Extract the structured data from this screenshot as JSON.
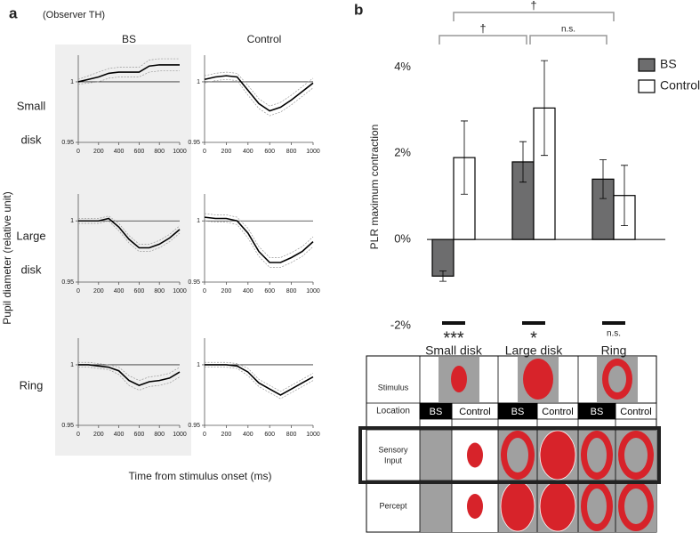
{
  "panel_a": {
    "label": "a",
    "observer": "(Observer TH)",
    "columns": [
      "BS",
      "Control"
    ],
    "rows": [
      [
        "Small",
        "disk"
      ],
      [
        "Large",
        "disk"
      ],
      [
        "Ring"
      ]
    ],
    "ylabel": "Pupil diameter (relative unit)",
    "xlabel": "Time from stimulus onset (ms)"
  },
  "panel_b": {
    "label": "b"
  },
  "chart_data": [
    {
      "type": "line",
      "x": [
        0,
        100,
        200,
        300,
        400,
        500,
        600,
        700,
        800,
        900,
        1000
      ],
      "xlim": [
        0,
        1000
      ],
      "xticks": [
        0,
        200,
        400,
        600,
        800,
        1000
      ],
      "ylim": [
        0.95,
        1.022
      ],
      "yticks": [
        0.95,
        1
      ],
      "reference_line": 1,
      "series": [
        {
          "color": "#000000",
          "values": [
            1.0,
            1.002,
            1.004,
            1.007,
            1.008,
            1.008,
            1.008,
            1.013,
            1.014,
            1.014,
            1.014
          ]
        },
        {
          "color": "#999999",
          "dash": true,
          "values": [
            1.002,
            1.005,
            1.008,
            1.011,
            1.012,
            1.012,
            1.012,
            1.018,
            1.019,
            1.019,
            1.019
          ]
        },
        {
          "color": "#999999",
          "dash": true,
          "values": [
            0.998,
            0.999,
            1.0,
            1.003,
            1.004,
            1.004,
            1.004,
            1.008,
            1.009,
            1.009,
            1.009
          ]
        }
      ]
    },
    {
      "type": "line",
      "x": [
        0,
        100,
        200,
        300,
        400,
        500,
        600,
        700,
        800,
        900,
        1000
      ],
      "xlim": [
        0,
        1000
      ],
      "xticks": [
        0,
        200,
        400,
        600,
        800,
        1000
      ],
      "ylim": [
        0.95,
        1.022
      ],
      "yticks": [
        0.95,
        1
      ],
      "reference_line": 1,
      "series": [
        {
          "color": "#000000",
          "values": [
            1.002,
            1.004,
            1.005,
            1.004,
            0.993,
            0.982,
            0.976,
            0.979,
            0.985,
            0.992,
            0.999
          ]
        },
        {
          "color": "#999999",
          "dash": true,
          "values": [
            1.005,
            1.007,
            1.008,
            1.007,
            0.997,
            0.986,
            0.98,
            0.983,
            0.989,
            0.996,
            1.003
          ]
        },
        {
          "color": "#999999",
          "dash": true,
          "values": [
            0.999,
            1.001,
            1.002,
            1.001,
            0.989,
            0.978,
            0.972,
            0.975,
            0.981,
            0.988,
            0.995
          ]
        }
      ]
    },
    {
      "type": "line",
      "x": [
        0,
        100,
        200,
        300,
        400,
        500,
        600,
        700,
        800,
        900,
        1000
      ],
      "xlim": [
        0,
        1000
      ],
      "xticks": [
        0,
        200,
        400,
        600,
        800,
        1000
      ],
      "ylim": [
        0.95,
        1.022
      ],
      "yticks": [
        0.95,
        1
      ],
      "reference_line": 1,
      "series": [
        {
          "color": "#000000",
          "values": [
            1.0,
            1.0,
            1.0,
            1.002,
            0.995,
            0.985,
            0.978,
            0.978,
            0.981,
            0.986,
            0.993
          ]
        },
        {
          "color": "#999999",
          "dash": true,
          "values": [
            1.002,
            1.002,
            1.002,
            1.004,
            0.998,
            0.988,
            0.981,
            0.981,
            0.984,
            0.989,
            0.996
          ]
        },
        {
          "color": "#999999",
          "dash": true,
          "values": [
            0.998,
            0.998,
            0.998,
            1.0,
            0.992,
            0.982,
            0.975,
            0.975,
            0.978,
            0.983,
            0.99
          ]
        }
      ]
    },
    {
      "type": "line",
      "x": [
        0,
        100,
        200,
        300,
        400,
        500,
        600,
        700,
        800,
        900,
        1000
      ],
      "xlim": [
        0,
        1000
      ],
      "xticks": [
        0,
        200,
        400,
        600,
        800,
        1000
      ],
      "ylim": [
        0.95,
        1.022
      ],
      "yticks": [
        0.95,
        1
      ],
      "reference_line": 1,
      "series": [
        {
          "color": "#000000",
          "values": [
            1.003,
            1.002,
            1.002,
            1.0,
            0.99,
            0.975,
            0.966,
            0.966,
            0.97,
            0.975,
            0.983
          ]
        },
        {
          "color": "#999999",
          "dash": true,
          "values": [
            1.006,
            1.005,
            1.005,
            1.003,
            0.994,
            0.979,
            0.97,
            0.97,
            0.974,
            0.979,
            0.987
          ]
        },
        {
          "color": "#999999",
          "dash": true,
          "values": [
            1.0,
            0.999,
            0.999,
            0.997,
            0.986,
            0.971,
            0.962,
            0.962,
            0.966,
            0.971,
            0.979
          ]
        }
      ]
    },
    {
      "type": "line",
      "x": [
        0,
        100,
        200,
        300,
        400,
        500,
        600,
        700,
        800,
        900,
        1000
      ],
      "xlim": [
        0,
        1000
      ],
      "xticks": [
        0,
        200,
        400,
        600,
        800,
        1000
      ],
      "ylim": [
        0.95,
        1.022
      ],
      "yticks": [
        0.95,
        1
      ],
      "reference_line": 1,
      "series": [
        {
          "color": "#000000",
          "values": [
            1.0,
            1.0,
            0.999,
            0.998,
            0.995,
            0.987,
            0.983,
            0.986,
            0.987,
            0.989,
            0.994
          ]
        },
        {
          "color": "#999999",
          "dash": true,
          "values": [
            1.002,
            1.002,
            1.001,
            1.0,
            0.998,
            0.991,
            0.987,
            0.99,
            0.991,
            0.993,
            0.998
          ]
        },
        {
          "color": "#999999",
          "dash": true,
          "values": [
            0.998,
            0.998,
            0.997,
            0.996,
            0.992,
            0.983,
            0.979,
            0.982,
            0.983,
            0.985,
            0.99
          ]
        }
      ]
    },
    {
      "type": "line",
      "x": [
        0,
        100,
        200,
        300,
        400,
        500,
        600,
        700,
        800,
        900,
        1000
      ],
      "xlim": [
        0,
        1000
      ],
      "xticks": [
        0,
        200,
        400,
        600,
        800,
        1000
      ],
      "ylim": [
        0.95,
        1.022
      ],
      "yticks": [
        0.95,
        1
      ],
      "reference_line": 1,
      "series": [
        {
          "color": "#000000",
          "values": [
            1.0,
            1.0,
            1.0,
            0.999,
            0.994,
            0.985,
            0.98,
            0.975,
            0.98,
            0.985,
            0.99
          ]
        },
        {
          "color": "#999999",
          "dash": true,
          "values": [
            1.002,
            1.002,
            1.002,
            1.001,
            0.997,
            0.988,
            0.983,
            0.978,
            0.983,
            0.988,
            0.993
          ]
        },
        {
          "color": "#999999",
          "dash": true,
          "values": [
            0.998,
            0.998,
            0.998,
            0.997,
            0.991,
            0.982,
            0.977,
            0.972,
            0.977,
            0.982,
            0.987
          ]
        }
      ]
    },
    {
      "type": "bar",
      "categories": [
        "Small disk",
        "Large disk",
        "Ring"
      ],
      "ylabel": "PLR maximum contraction",
      "ylim": [
        -2,
        4.4
      ],
      "yticks": [
        {
          "value": -2,
          "label": "-2%"
        },
        {
          "value": 0,
          "label": "0%"
        },
        {
          "value": 2,
          "label": "2%"
        },
        {
          "value": 4,
          "label": "4%"
        }
      ],
      "legend": "top-right",
      "series": [
        {
          "name": "BS",
          "color": "#6d6d6e",
          "values": [
            -0.85,
            1.8,
            1.4
          ],
          "errors": [
            0.12,
            0.47,
            0.45
          ]
        },
        {
          "name": "Control",
          "color": "#ffffff",
          "values": [
            1.9,
            3.05,
            1.02
          ],
          "errors": [
            0.85,
            1.1,
            0.7
          ]
        }
      ],
      "brackets": [
        "†",
        "†",
        "n.s."
      ],
      "significance": [
        "***",
        "*",
        "n.s."
      ]
    }
  ],
  "table": {
    "stimulus": "Stimulus",
    "location": "Location",
    "sensory_input": [
      "Sensory",
      "Input"
    ],
    "percept": "Percept",
    "locations": [
      "BS",
      "Control",
      "BS",
      "Control",
      "BS",
      "Control"
    ]
  }
}
